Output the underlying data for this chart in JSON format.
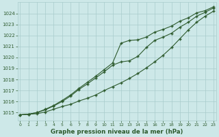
{
  "title": "Graphe pression niveau de la mer (hPa)",
  "bg_color": "#cde8e8",
  "grid_color": "#a8cccc",
  "line_color": "#2d5a2d",
  "x_ticks": [
    0,
    1,
    2,
    3,
    4,
    5,
    6,
    7,
    8,
    9,
    10,
    11,
    12,
    13,
    14,
    15,
    16,
    17,
    18,
    19,
    20,
    21,
    22,
    23
  ],
  "y_ticks": [
    1015,
    1016,
    1017,
    1018,
    1019,
    1020,
    1021,
    1022,
    1023,
    1024
  ],
  "ylim": [
    1014.3,
    1025.0
  ],
  "xlim": [
    -0.3,
    23.3
  ],
  "series1": [
    1014.8,
    1014.85,
    1014.9,
    1015.05,
    1015.3,
    1015.55,
    1015.75,
    1016.05,
    1016.3,
    1016.6,
    1017.0,
    1017.35,
    1017.7,
    1018.1,
    1018.55,
    1019.05,
    1019.6,
    1020.2,
    1020.9,
    1021.7,
    1022.5,
    1023.2,
    1023.75,
    1024.2
  ],
  "series2": [
    1014.8,
    1014.85,
    1015.0,
    1015.25,
    1015.6,
    1016.0,
    1016.5,
    1017.1,
    1017.6,
    1018.15,
    1018.7,
    1019.3,
    1019.6,
    1019.7,
    1020.1,
    1020.9,
    1021.55,
    1021.85,
    1022.2,
    1022.75,
    1023.2,
    1023.75,
    1024.1,
    1024.5
  ],
  "series3": [
    1014.8,
    1014.85,
    1015.0,
    1015.3,
    1015.65,
    1016.1,
    1016.6,
    1017.2,
    1017.75,
    1018.3,
    1018.9,
    1019.5,
    1021.3,
    1021.55,
    1021.6,
    1021.85,
    1022.3,
    1022.55,
    1022.85,
    1023.3,
    1023.6,
    1024.05,
    1024.25,
    1024.6
  ]
}
